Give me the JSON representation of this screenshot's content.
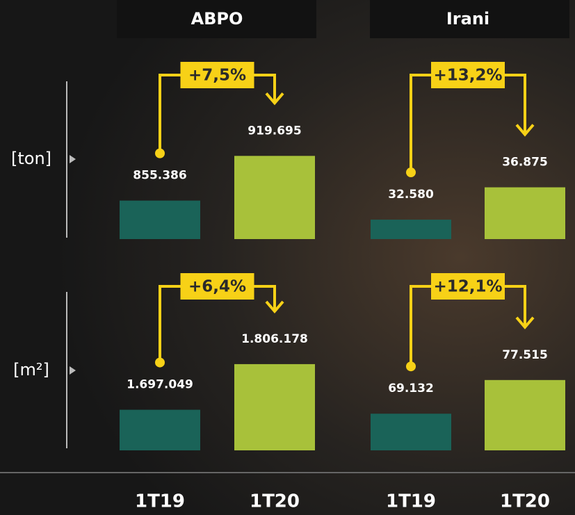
{
  "chart_data": [
    {
      "type": "bar",
      "title": "ABPO",
      "ylabel": "[ton]",
      "values": [
        855386,
        919695
      ],
      "value_labels": [
        "855.386",
        "919.695"
      ],
      "colors": [
        "#1a6358",
        "#a8c13a"
      ],
      "ylim": [
        800000,
        930000
      ],
      "change": "+7,5%"
    },
    {
      "type": "bar",
      "title": "Irani",
      "values": [
        32580,
        36875
      ],
      "value_labels": [
        "32.580",
        "36.875"
      ],
      "colors": [
        "#1a6358",
        "#a8c13a"
      ],
      "ylim": [
        30000,
        42000
      ],
      "change": "+13,2%"
    },
    {
      "type": "bar",
      "ylabel": "[m²]",
      "categories": [
        "1T19",
        "1T20"
      ],
      "values": [
        1697049,
        1806178
      ],
      "value_labels": [
        "1.697.049",
        "1.806.178"
      ],
      "colors": [
        "#1a6358",
        "#a8c13a"
      ],
      "ylim": [
        1600000,
        1816000
      ],
      "change": "+6,4%"
    },
    {
      "type": "bar",
      "categories": [
        "1T19",
        "1T20"
      ],
      "values": [
        69132,
        77515
      ],
      "value_labels": [
        "69.132",
        "77.515"
      ],
      "colors": [
        "#1a6358",
        "#a8c13a"
      ],
      "ylim": [
        60000,
        82500
      ],
      "change": "+12,1%"
    }
  ]
}
